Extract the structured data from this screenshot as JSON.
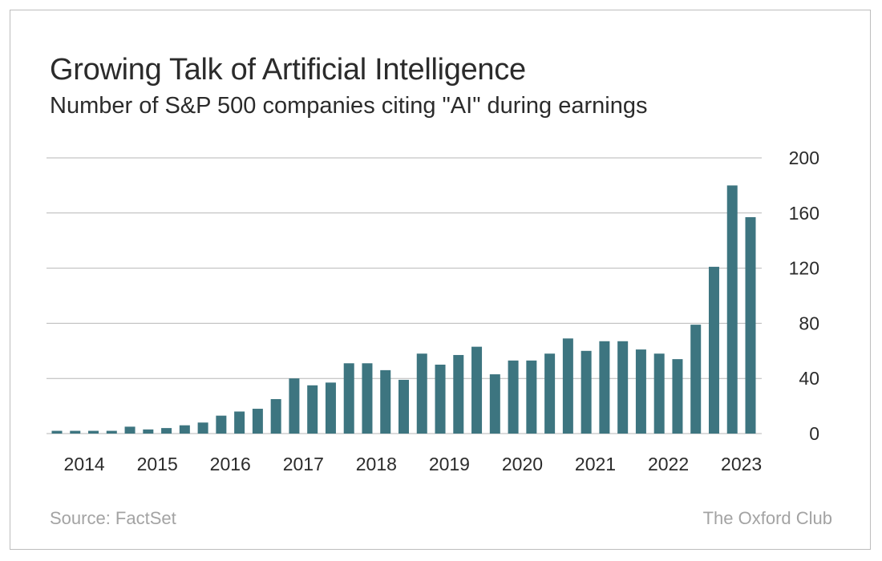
{
  "title": "Growing Talk of Artificial Intelligence",
  "subtitle": "Number of S&P 500 companies citing \"AI\" during earnings",
  "source": "Source: FactSet",
  "brand": "The Oxford Club",
  "colors": {
    "bar": "#3d7580",
    "grid": "#b7b7b7",
    "text": "#2b2b2b",
    "footer": "#a3a3a3"
  },
  "chart_data": {
    "type": "bar",
    "title": "Growing Talk of Artificial Intelligence",
    "subtitle": "Number of S&P 500 companies citing \"AI\" during earnings",
    "xlabel": "",
    "ylabel": "",
    "ylim": [
      0,
      200
    ],
    "yticks": [
      0,
      40,
      80,
      120,
      160,
      200
    ],
    "y_axis_position": "right",
    "grid": true,
    "legend": "none",
    "categories": [
      "2014 Q1",
      "2014 Q2",
      "2014 Q3",
      "2014 Q4",
      "2015 Q1",
      "2015 Q2",
      "2015 Q3",
      "2015 Q4",
      "2016 Q1",
      "2016 Q2",
      "2016 Q3",
      "2016 Q4",
      "2017 Q1",
      "2017 Q2",
      "2017 Q3",
      "2017 Q4",
      "2018 Q1",
      "2018 Q2",
      "2018 Q3",
      "2018 Q4",
      "2019 Q1",
      "2019 Q2",
      "2019 Q3",
      "2019 Q4",
      "2020 Q1",
      "2020 Q2",
      "2020 Q3",
      "2020 Q4",
      "2021 Q1",
      "2021 Q2",
      "2021 Q3",
      "2021 Q4",
      "2022 Q1",
      "2022 Q2",
      "2022 Q3",
      "2022 Q4",
      "2023 Q1",
      "2023 Q2",
      "2023 Q3"
    ],
    "values": [
      2,
      2,
      2,
      2,
      5,
      3,
      4,
      6,
      8,
      13,
      16,
      18,
      25,
      40,
      35,
      37,
      51,
      51,
      46,
      39,
      58,
      50,
      57,
      63,
      43,
      53,
      53,
      58,
      69,
      60,
      67,
      67,
      61,
      58,
      54,
      79,
      121,
      180,
      157
    ],
    "x_tick_labels": [
      "2014",
      "2015",
      "2016",
      "2017",
      "2018",
      "2019",
      "2020",
      "2021",
      "2022",
      "2023"
    ]
  }
}
